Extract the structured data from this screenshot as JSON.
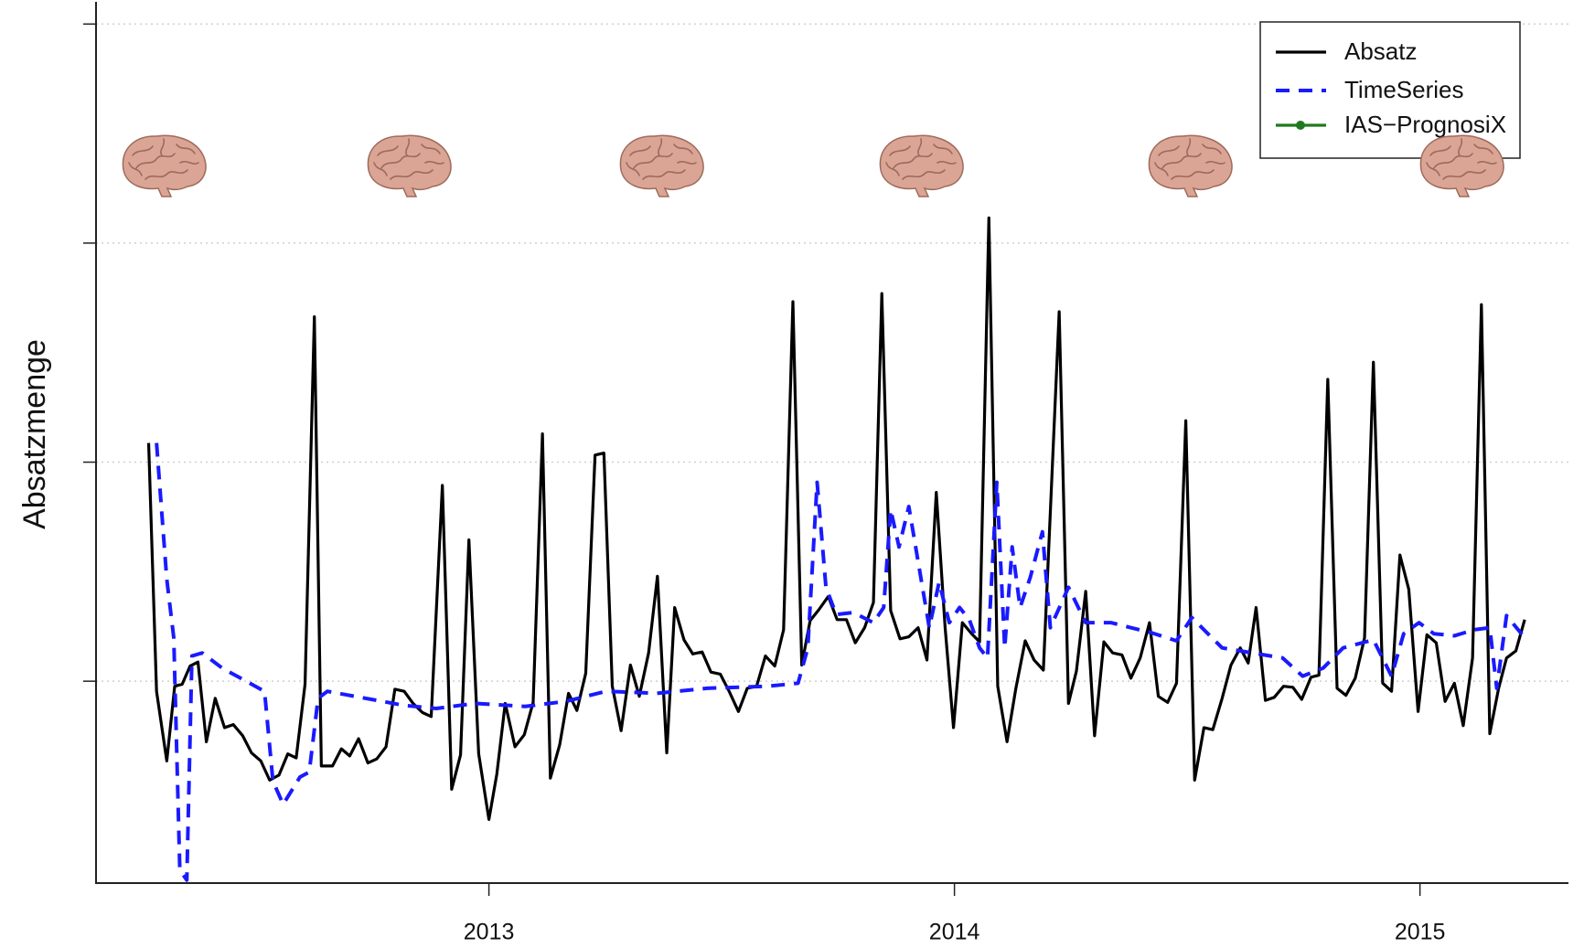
{
  "chart_data": {
    "type": "line",
    "y_label": "Absatzmenge",
    "xlim": [
      2012.156,
      2015.319
    ],
    "xticks": [
      2013,
      2014,
      2015
    ],
    "ylim": [
      0,
      873
    ],
    "yticks": [
      200,
      417,
      634,
      851
    ],
    "grid": true,
    "legend": "top-right",
    "series": [
      {
        "name": "Absatz",
        "color": "#000000",
        "style": "solid",
        "x": [
          2012.269,
          2012.286,
          2012.308,
          2012.325,
          2012.341,
          2012.358,
          2012.375,
          2012.393,
          2012.412,
          2012.432,
          2012.451,
          2012.471,
          2012.49,
          2012.51,
          2012.529,
          2012.549,
          2012.568,
          2012.586,
          2012.605,
          2012.625,
          2012.64,
          2012.664,
          2012.683,
          2012.701,
          2012.72,
          2012.74,
          2012.759,
          2012.779,
          2012.798,
          2012.818,
          2012.837,
          2012.857,
          2012.876,
          2012.9,
          2012.92,
          2012.939,
          2012.957,
          2012.978,
          2013.0,
          2013.017,
          2013.035,
          2013.056,
          2013.076,
          2013.095,
          2013.115,
          2013.132,
          2013.152,
          2013.171,
          2013.189,
          2013.208,
          2013.228,
          2013.247,
          2013.265,
          2013.284,
          2013.304,
          2013.323,
          2013.343,
          2013.362,
          2013.382,
          2013.399,
          2013.419,
          2013.438,
          2013.458,
          2013.477,
          2013.497,
          2013.516,
          2013.536,
          2013.555,
          2013.575,
          2013.594,
          2013.614,
          2013.633,
          2013.653,
          2013.672,
          2013.69,
          2013.709,
          2013.729,
          2013.748,
          2013.768,
          2013.787,
          2013.807,
          2013.826,
          2013.844,
          2013.863,
          2013.883,
          2013.902,
          2013.922,
          2013.941,
          2013.961,
          2013.98,
          2013.998,
          2014.017,
          2014.037,
          2014.054,
          2014.074,
          2014.093,
          2014.113,
          2014.132,
          2014.152,
          2014.171,
          2014.191,
          2014.225,
          2014.245,
          2014.262,
          2014.282,
          2014.301,
          2014.321,
          2014.34,
          2014.36,
          2014.379,
          2014.399,
          2014.419,
          2014.438,
          2014.458,
          2014.477,
          2014.497,
          2014.516,
          2014.536,
          2014.555,
          2014.575,
          2014.594,
          2014.614,
          2014.631,
          2014.648,
          2014.668,
          2014.687,
          2014.707,
          2014.727,
          2014.746,
          2014.766,
          2014.783,
          2014.802,
          2014.822,
          2014.841,
          2014.861,
          2014.881,
          2014.9,
          2014.92,
          2014.939,
          2014.957,
          2014.976,
          2014.996,
          2015.015,
          2015.035,
          2015.054,
          2015.074,
          2015.093,
          2015.113,
          2015.132,
          2015.15,
          2015.169,
          2015.186,
          2015.206,
          2015.225
        ],
        "values": [
          436,
          190,
          121,
          195,
          197,
          215,
          219,
          140,
          183,
          154,
          157,
          146,
          129,
          121,
          102,
          107,
          128,
          124,
          197,
          561,
          116,
          116,
          133,
          126,
          143,
          119,
          123,
          135,
          192,
          190,
          178,
          169,
          165,
          394,
          93,
          127,
          340,
          128,
          63,
          108,
          178,
          135,
          147,
          179,
          445,
          104,
          137,
          188,
          171,
          208,
          424,
          426,
          195,
          151,
          216,
          185,
          228,
          304,
          129,
          273,
          241,
          227,
          229,
          209,
          207,
          190,
          170,
          193,
          195,
          225,
          215,
          251,
          576,
          216,
          260,
          271,
          284,
          261,
          261,
          238,
          253,
          278,
          584,
          270,
          242,
          244,
          253,
          221,
          387,
          253,
          154,
          258,
          247,
          239,
          659,
          195,
          140,
          193,
          240,
          221,
          211,
          566,
          178,
          210,
          289,
          146,
          239,
          228,
          226,
          203,
          223,
          258,
          185,
          179,
          198,
          458,
          102,
          154,
          152,
          183,
          216,
          233,
          218,
          273,
          181,
          184,
          195,
          194,
          182,
          204,
          206,
          499,
          193,
          186,
          203,
          243,
          516,
          198,
          190,
          325,
          291,
          170,
          246,
          238,
          180,
          198,
          156,
          223,
          573,
          148,
          193,
          223,
          230,
          261
        ]
      },
      {
        "name": "TimeSeries",
        "color": "#1a1aff",
        "style": "dashed",
        "x": [
          2012.286,
          2012.308,
          2012.323,
          2012.336,
          2012.351,
          2012.362,
          2012.384,
          2012.427,
          2012.518,
          2012.536,
          2012.558,
          2012.594,
          2012.614,
          2012.633,
          2012.653,
          2012.818,
          2012.887,
          2012.97,
          2013.078,
          2013.165,
          2013.252,
          2013.36,
          2013.469,
          2013.599,
          2013.664,
          2013.685,
          2013.705,
          2013.724,
          2013.746,
          2013.783,
          2013.826,
          2013.848,
          2013.863,
          2013.881,
          2013.902,
          2013.924,
          2013.946,
          2013.967,
          2013.989,
          2014.011,
          2014.032,
          2014.054,
          2014.071,
          2014.091,
          2014.108,
          2014.124,
          2014.141,
          2014.163,
          2014.189,
          2014.206,
          2014.245,
          2014.282,
          2014.336,
          2014.423,
          2014.477,
          2014.51,
          2014.575,
          2014.64,
          2014.705,
          2014.748,
          2014.792,
          2014.835,
          2014.9,
          2014.939,
          2014.965,
          2014.998,
          2015.03,
          2015.074,
          2015.117,
          2015.15,
          2015.165,
          2015.186,
          2015.225
        ],
        "values": [
          436,
          301,
          243,
          13,
          3,
          225,
          228,
          213,
          190,
          101,
          78,
          105,
          110,
          183,
          190,
          176,
          173,
          178,
          175,
          180,
          190,
          188,
          193,
          195,
          198,
          233,
          397,
          293,
          266,
          268,
          258,
          273,
          370,
          333,
          373,
          313,
          253,
          298,
          258,
          273,
          261,
          233,
          223,
          397,
          233,
          333,
          273,
          303,
          348,
          253,
          293,
          258,
          258,
          248,
          240,
          263,
          233,
          228,
          223,
          205,
          213,
          233,
          241,
          205,
          247,
          258,
          247,
          245,
          251,
          253,
          193,
          265,
          243
        ]
      },
      {
        "name": "IAS−PrognosiX",
        "color": "#1f7a1f",
        "style": "point-line",
        "x": [],
        "values": []
      }
    ]
  }
}
